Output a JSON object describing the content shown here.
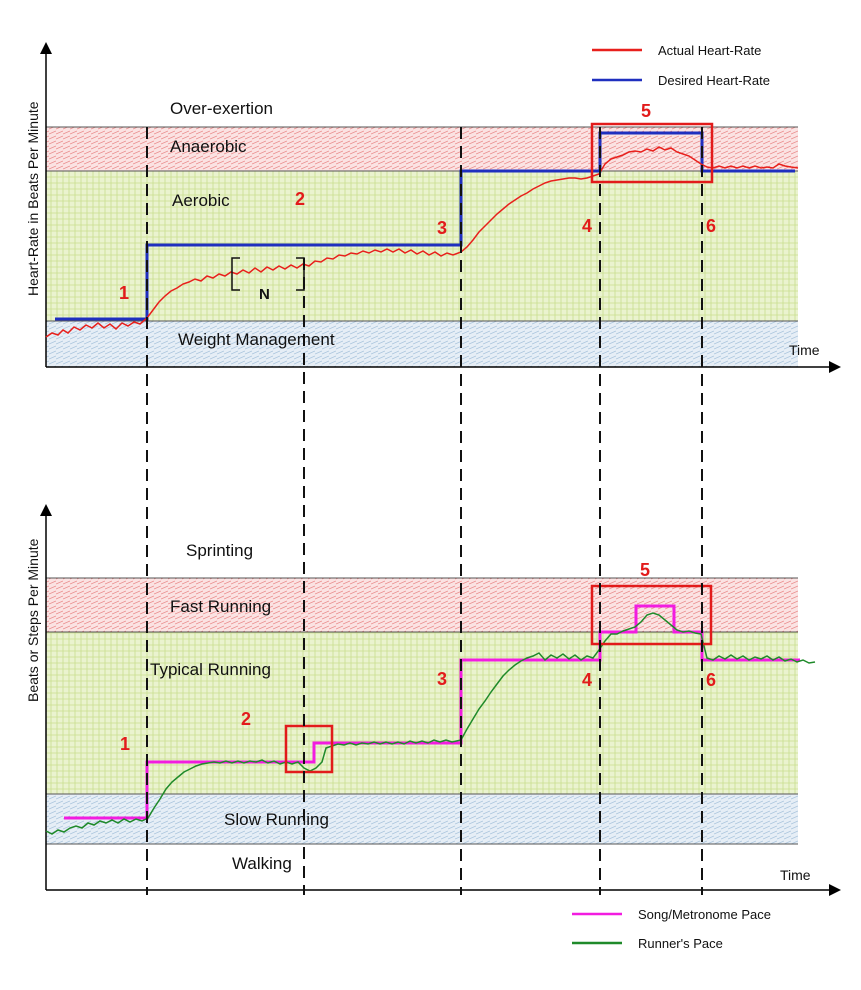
{
  "colors": {
    "actual_heart_rate": "#e8201c",
    "desired_heart_rate": "#1f2fbf",
    "song_pace": "#f21ce0",
    "runner_pace": "#1f8a2a",
    "highlight_box": "#e21b1b",
    "marker_text": "#e21b1b",
    "zone_green": "#e7f1c8",
    "zone_red": "#f8d4d4",
    "zone_blue": "#dbe8f3"
  },
  "top": {
    "ylabel": "Heart-Rate in Beats Per Minute",
    "xlabel": "Time",
    "zones": [
      "Over-exertion",
      "Anaerobic",
      "Aerobic",
      "Weight Management"
    ],
    "markers": [
      "1",
      "2",
      "3",
      "4",
      "5",
      "6"
    ],
    "bracket_label": "N",
    "legend": [
      "Actual Heart-Rate",
      "Desired Heart-Rate"
    ]
  },
  "bottom": {
    "ylabel": "Beats or Steps Per Minute",
    "xlabel": "Time",
    "zones": [
      "Sprinting",
      "Fast Running",
      "Typical Running",
      "Slow Running",
      "Walking"
    ],
    "markers": [
      "1",
      "2",
      "3",
      "4",
      "5",
      "6"
    ],
    "legend": [
      "Song/Metronome Pace",
      "Runner's Pace"
    ]
  }
}
